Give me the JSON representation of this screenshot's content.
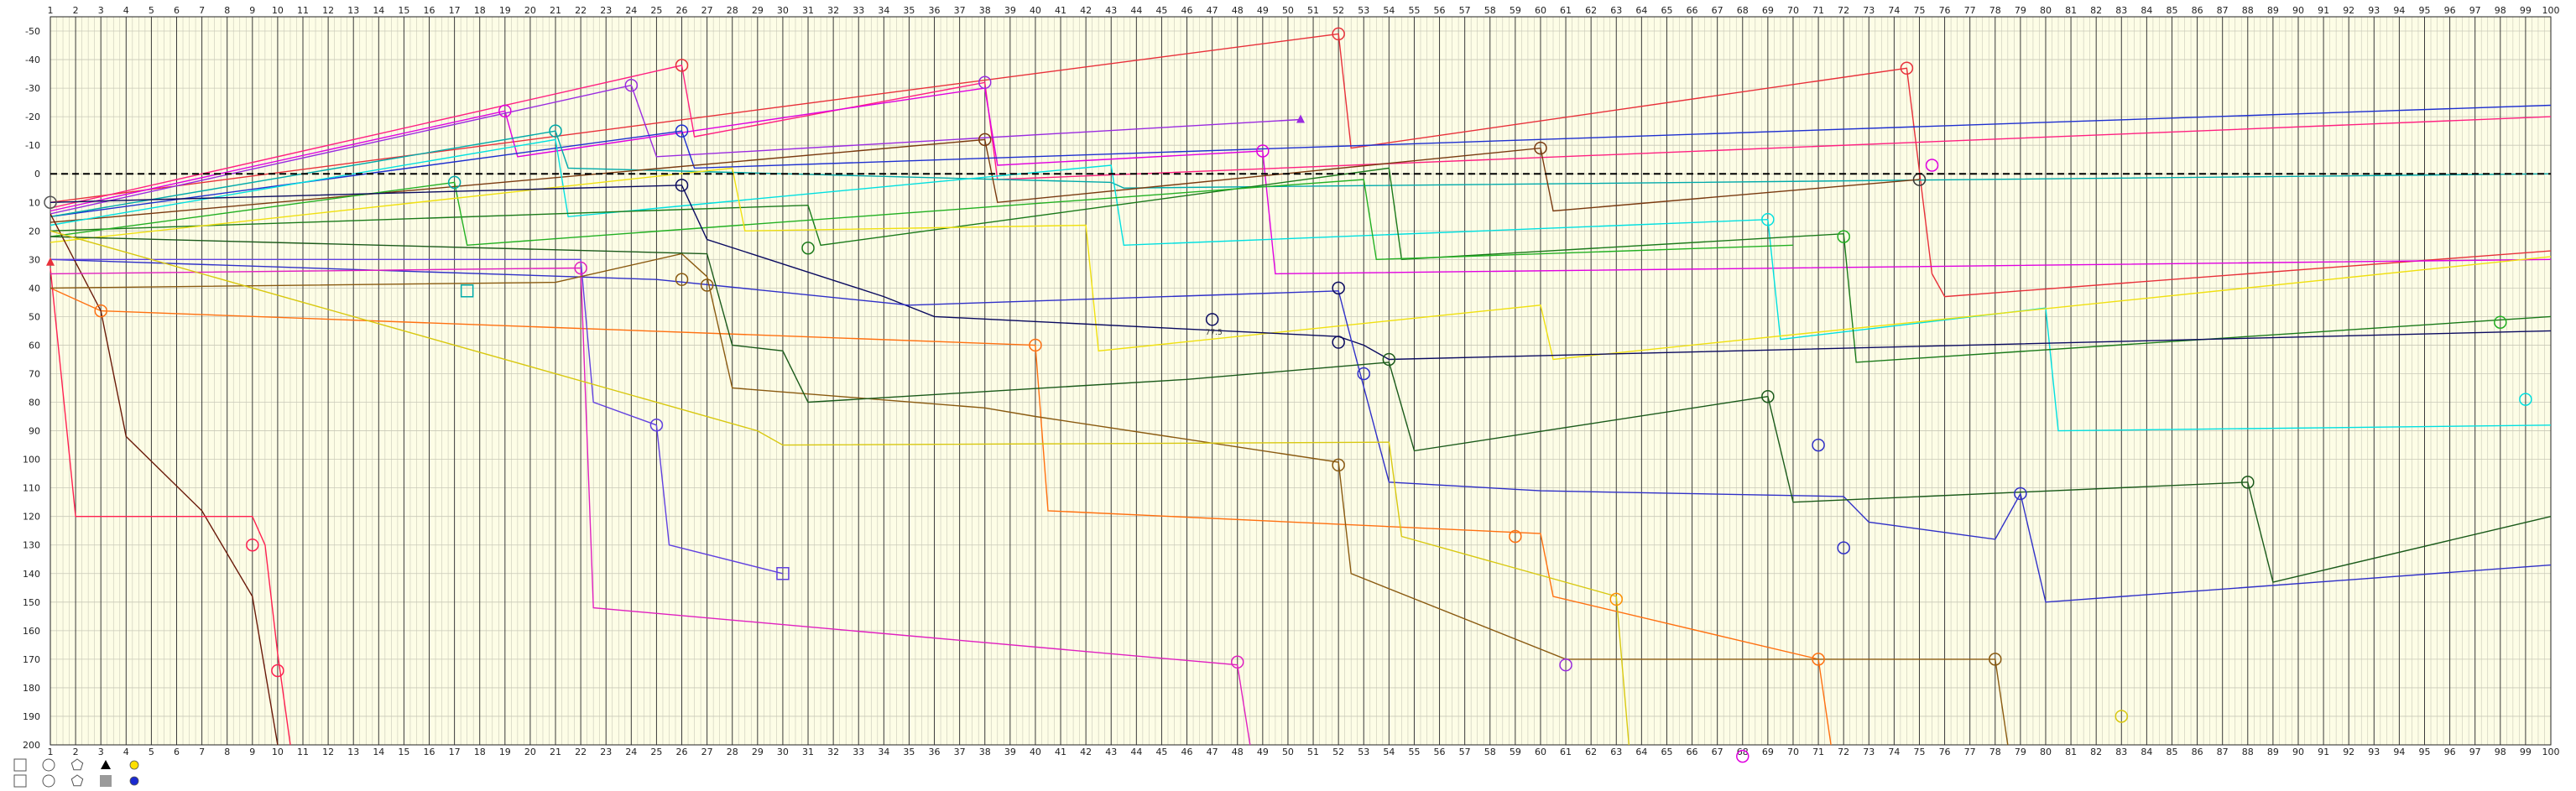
{
  "chart_data": {
    "type": "line",
    "title": "",
    "xlabel": "",
    "ylabel": "",
    "xlim": [
      1,
      100
    ],
    "ylim": [
      200,
      -55
    ],
    "x_ticks": [
      1,
      2,
      3,
      4,
      5,
      6,
      7,
      8,
      9,
      10,
      11,
      12,
      13,
      14,
      15,
      16,
      17,
      18,
      19,
      20,
      21,
      22,
      23,
      24,
      25,
      26,
      27,
      28,
      29,
      30,
      31,
      32,
      33,
      34,
      35,
      36,
      37,
      38,
      39,
      40,
      41,
      42,
      43,
      44,
      45,
      46,
      47,
      48,
      49,
      50,
      51,
      52,
      53,
      54,
      55,
      56,
      57,
      58,
      59,
      60,
      61,
      62,
      63,
      64,
      65,
      66,
      67,
      68,
      69,
      70,
      71,
      72,
      73,
      74,
      75,
      76,
      77,
      78,
      79,
      80,
      81,
      82,
      83,
      84,
      85,
      86,
      87,
      88,
      89,
      90,
      91,
      92,
      93,
      94,
      95,
      96,
      97,
      98,
      99,
      100
    ],
    "y_ticks": [
      -50,
      -40,
      -30,
      -20,
      -10,
      0,
      10,
      20,
      30,
      40,
      50,
      60,
      70,
      80,
      90,
      100,
      110,
      120,
      130,
      140,
      150,
      160,
      170,
      180,
      190,
      200
    ],
    "reference_line": 0,
    "grid": true,
    "colors": {
      "background": "#fdfde6",
      "major_grid": "#3a3a3a",
      "minor_grid": "#c9c9b8"
    },
    "annotation": "77.5",
    "series": [
      {
        "color": "#e8303a",
        "points": [
          [
            1,
            10
          ],
          [
            52,
            -49
          ],
          [
            52.5,
            -9
          ],
          [
            74.5,
            -37
          ],
          [
            75.5,
            35
          ],
          [
            76,
            43
          ],
          [
            100,
            27
          ]
        ]
      },
      {
        "color": "#ff2080",
        "points": [
          [
            1,
            12
          ],
          [
            26,
            -38
          ],
          [
            26.5,
            -13
          ],
          [
            38,
            -32
          ],
          [
            38.5,
            2
          ],
          [
            100,
            -20
          ]
        ]
      },
      {
        "color": "#e000e0",
        "points": [
          [
            1,
            13
          ],
          [
            19,
            -22
          ],
          [
            19.5,
            -6
          ],
          [
            38,
            -30
          ],
          [
            38.5,
            -3
          ],
          [
            49,
            -8
          ],
          [
            49.5,
            35
          ],
          [
            100,
            30
          ]
        ]
      },
      {
        "color": "#9a2be0",
        "points": [
          [
            1,
            14
          ],
          [
            24,
            -31
          ],
          [
            25,
            -6
          ],
          [
            50.5,
            -19
          ]
        ]
      },
      {
        "color": "#1e2fd0",
        "points": [
          [
            1,
            15
          ],
          [
            26,
            -15
          ],
          [
            26.5,
            -2
          ],
          [
            100,
            -24
          ]
        ]
      },
      {
        "color": "#00aaaa",
        "points": [
          [
            1,
            15
          ],
          [
            21,
            -15
          ],
          [
            21.5,
            -2
          ],
          [
            43,
            3
          ],
          [
            43.5,
            5
          ],
          [
            100,
            0
          ]
        ]
      },
      {
        "color": "#7a3a10",
        "points": [
          [
            1,
            17
          ],
          [
            38,
            -12
          ],
          [
            38.5,
            10
          ],
          [
            60,
            -9
          ],
          [
            60.5,
            13
          ],
          [
            75,
            2
          ]
        ]
      },
      {
        "color": "#00e0e0",
        "points": [
          [
            1,
            18
          ],
          [
            21,
            -12
          ],
          [
            21.5,
            15
          ],
          [
            43,
            -3
          ],
          [
            43.5,
            25
          ],
          [
            69,
            16
          ],
          [
            69.5,
            58
          ],
          [
            80,
            47
          ],
          [
            80.5,
            90
          ],
          [
            100,
            88
          ]
        ]
      },
      {
        "color": "#1a7a1a",
        "points": [
          [
            1,
            20
          ],
          [
            31,
            11
          ],
          [
            31.5,
            25
          ],
          [
            54,
            -2
          ],
          [
            54.5,
            30
          ],
          [
            72,
            21
          ],
          [
            72.5,
            66
          ],
          [
            100,
            50
          ]
        ]
      },
      {
        "color": "#22b022",
        "points": [
          [
            1,
            22
          ],
          [
            17,
            3
          ],
          [
            17.5,
            25
          ],
          [
            53,
            2
          ],
          [
            53.5,
            30
          ],
          [
            70,
            25
          ]
        ]
      },
      {
        "color": "#f0e010",
        "points": [
          [
            1,
            24
          ],
          [
            28,
            -2
          ],
          [
            28.5,
            20
          ],
          [
            42,
            18
          ],
          [
            42.5,
            62
          ],
          [
            60,
            46
          ],
          [
            60.5,
            65
          ],
          [
            100,
            29
          ]
        ]
      },
      {
        "color": "#0a0a60",
        "points": [
          [
            1,
            10
          ],
          [
            26,
            4
          ],
          [
            27,
            23
          ],
          [
            34,
            43
          ],
          [
            36,
            50
          ],
          [
            52,
            57
          ],
          [
            53,
            60
          ],
          [
            54,
            65
          ],
          [
            100,
            55
          ]
        ]
      },
      {
        "color": "#3030c8",
        "points": [
          [
            1,
            30
          ],
          [
            25,
            37
          ],
          [
            35,
            46
          ],
          [
            52,
            41
          ],
          [
            52.5,
            58
          ],
          [
            54,
            108
          ],
          [
            60,
            111
          ],
          [
            72,
            113
          ],
          [
            73,
            122
          ],
          [
            78,
            128
          ],
          [
            79,
            112
          ],
          [
            80,
            150
          ],
          [
            100,
            137
          ]
        ]
      },
      {
        "color": "#ff7010",
        "points": [
          [
            1,
            40
          ],
          [
            3,
            48
          ],
          [
            40,
            60
          ],
          [
            40.5,
            118
          ],
          [
            60,
            126
          ],
          [
            60.5,
            148
          ],
          [
            71,
            170
          ],
          [
            71.5,
            200
          ]
        ]
      },
      {
        "color": "#6a1a0a",
        "points": [
          [
            1,
            14
          ],
          [
            3,
            48
          ],
          [
            4,
            92
          ],
          [
            7,
            118
          ],
          [
            9,
            148
          ],
          [
            10,
            200
          ]
        ]
      },
      {
        "color": "#ff2050",
        "points": [
          [
            1,
            33
          ],
          [
            2,
            120
          ],
          [
            9,
            120
          ],
          [
            9.5,
            130
          ],
          [
            10,
            168
          ],
          [
            10.5,
            200
          ]
        ]
      },
      {
        "color": "#e020c0",
        "points": [
          [
            1,
            35
          ],
          [
            22,
            33
          ],
          [
            22.5,
            152
          ],
          [
            48,
            172
          ],
          [
            48.5,
            200
          ]
        ]
      },
      {
        "color": "#6040e0",
        "points": [
          [
            1,
            30
          ],
          [
            22,
            30
          ],
          [
            22.5,
            80
          ],
          [
            25,
            88
          ],
          [
            25.5,
            130
          ],
          [
            30,
            140
          ]
        ]
      },
      {
        "color": "#8a5a10",
        "points": [
          [
            1,
            40
          ],
          [
            21,
            38
          ],
          [
            26,
            28
          ],
          [
            27,
            36
          ],
          [
            28,
            75
          ],
          [
            38,
            82
          ],
          [
            40,
            85
          ],
          [
            52,
            101
          ],
          [
            52.5,
            140
          ],
          [
            61,
            170
          ],
          [
            78,
            170
          ],
          [
            78.5,
            200
          ]
        ]
      },
      {
        "color": "#1a5a1a",
        "points": [
          [
            1,
            22
          ],
          [
            27,
            28
          ],
          [
            28,
            60
          ],
          [
            30,
            62
          ],
          [
            31,
            80
          ],
          [
            46,
            72
          ],
          [
            54,
            66
          ],
          [
            55,
            97
          ],
          [
            69,
            78
          ],
          [
            70,
            115
          ],
          [
            88,
            108
          ],
          [
            89,
            143
          ],
          [
            100,
            120
          ]
        ]
      },
      {
        "color": "#d8c810",
        "points": [
          [
            1,
            20
          ],
          [
            29,
            90
          ],
          [
            30,
            95
          ],
          [
            54,
            94
          ],
          [
            54.5,
            127
          ],
          [
            63,
            148
          ],
          [
            63.5,
            200
          ]
        ]
      }
    ],
    "markers": [
      {
        "x": 1,
        "y": 10,
        "shape": "circle",
        "color": "#555555"
      },
      {
        "x": 3,
        "y": 48,
        "shape": "circle",
        "color": "#ff7010"
      },
      {
        "x": 19,
        "y": -22,
        "shape": "circle",
        "color": "#e000e0"
      },
      {
        "x": 24,
        "y": -31,
        "shape": "circle",
        "color": "#9a2be0"
      },
      {
        "x": 26,
        "y": -38,
        "shape": "circle",
        "color": "#e8303a"
      },
      {
        "x": 38,
        "y": -32,
        "shape": "circle",
        "color": "#9a2be0"
      },
      {
        "x": 52,
        "y": -49,
        "shape": "circle",
        "color": "#e8303a"
      },
      {
        "x": 74.5,
        "y": -37,
        "shape": "circle",
        "color": "#e8303a"
      },
      {
        "x": 75,
        "y": 2,
        "shape": "circle",
        "color": "#333333"
      },
      {
        "x": 75.5,
        "y": -3,
        "shape": "circle",
        "color": "#e000e0"
      },
      {
        "x": 60,
        "y": -9,
        "shape": "circle",
        "color": "#7a3a10"
      },
      {
        "x": 49,
        "y": -8,
        "shape": "circle",
        "color": "#e000e0"
      },
      {
        "x": 26,
        "y": -15,
        "shape": "circle",
        "color": "#1e2fd0"
      },
      {
        "x": 21,
        "y": -15,
        "shape": "circle",
        "color": "#00aaaa"
      },
      {
        "x": 17,
        "y": 3,
        "shape": "circle",
        "color": "#00aaaa"
      },
      {
        "x": 26,
        "y": 4,
        "shape": "circle",
        "color": "#0a0a60"
      },
      {
        "x": 38,
        "y": -12,
        "shape": "circle",
        "color": "#7a3a10"
      },
      {
        "x": 22,
        "y": 33,
        "shape": "circle",
        "color": "#e020c0"
      },
      {
        "x": 31,
        "y": 26,
        "shape": "circle",
        "color": "#1a7a1a"
      },
      {
        "x": 26,
        "y": 37,
        "shape": "circle",
        "color": "#8a5a10"
      },
      {
        "x": 27,
        "y": 39,
        "shape": "circle",
        "color": "#8a5a10"
      },
      {
        "x": 17.5,
        "y": 41,
        "shape": "square",
        "color": "#00aaaa"
      },
      {
        "x": 47,
        "y": 51,
        "shape": "circle",
        "color": "#0a0a60"
      },
      {
        "x": 52,
        "y": 40,
        "shape": "circle",
        "color": "#0a0a60"
      },
      {
        "x": 52,
        "y": 59,
        "shape": "circle",
        "color": "#0a0a60"
      },
      {
        "x": 53,
        "y": 70,
        "shape": "circle",
        "color": "#3030c8"
      },
      {
        "x": 54,
        "y": 65,
        "shape": "circle",
        "color": "#1a5a1a"
      },
      {
        "x": 40,
        "y": 60,
        "shape": "circle",
        "color": "#ff7010"
      },
      {
        "x": 25,
        "y": 88,
        "shape": "circle",
        "color": "#6040e0"
      },
      {
        "x": 30,
        "y": 140,
        "shape": "square",
        "color": "#6040e0"
      },
      {
        "x": 52,
        "y": 102,
        "shape": "circle",
        "color": "#8a5a10"
      },
      {
        "x": 69,
        "y": 78,
        "shape": "circle",
        "color": "#1a5a1a"
      },
      {
        "x": 71,
        "y": 95,
        "shape": "circle",
        "color": "#3030c8"
      },
      {
        "x": 72,
        "y": 131,
        "shape": "circle",
        "color": "#3030c8"
      },
      {
        "x": 79,
        "y": 112,
        "shape": "circle",
        "color": "#3030c8"
      },
      {
        "x": 88,
        "y": 108,
        "shape": "circle",
        "color": "#1a5a1a"
      },
      {
        "x": 69,
        "y": 16,
        "shape": "circle",
        "color": "#00e0e0"
      },
      {
        "x": 72,
        "y": 22,
        "shape": "circle",
        "color": "#22b022"
      },
      {
        "x": 98,
        "y": 52,
        "shape": "circle",
        "color": "#22b022"
      },
      {
        "x": 99,
        "y": 79,
        "shape": "circle",
        "color": "#00e0e0"
      },
      {
        "x": 9,
        "y": 130,
        "shape": "circle",
        "color": "#ff2050"
      },
      {
        "x": 10,
        "y": 174,
        "shape": "circle",
        "color": "#ff2050"
      },
      {
        "x": 48,
        "y": 171,
        "shape": "circle",
        "color": "#e020c0"
      },
      {
        "x": 61,
        "y": 172,
        "shape": "circle",
        "color": "#9a2be0"
      },
      {
        "x": 59,
        "y": 127,
        "shape": "circle",
        "color": "#ff7010"
      },
      {
        "x": 63,
        "y": 149,
        "shape": "circle",
        "color": "#ff9000"
      },
      {
        "x": 71,
        "y": 170,
        "shape": "circle",
        "color": "#ff7010"
      },
      {
        "x": 78,
        "y": 170,
        "shape": "circle",
        "color": "#8a5a10"
      },
      {
        "x": 83,
        "y": 190,
        "shape": "circle",
        "color": "#d8c810"
      },
      {
        "x": 68,
        "y": 204,
        "shape": "circle",
        "color": "#e000e0"
      },
      {
        "x": 1,
        "y": 31,
        "shape": "triangle",
        "color": "#e8303a"
      },
      {
        "x": 50.5,
        "y": -19,
        "shape": "triangle",
        "color": "#9a2be0"
      }
    ]
  },
  "legend": {
    "items": [
      {
        "shape": "square",
        "color": "#555555"
      },
      {
        "shape": "circle",
        "color": "#555555"
      },
      {
        "shape": "pentagon",
        "color": "#555555"
      },
      {
        "shape": "triangle",
        "color": "#000000"
      },
      {
        "shape": "dot",
        "color": "#ffe000"
      },
      {
        "shape": "square",
        "color": "#555555"
      },
      {
        "shape": "circle",
        "color": "#555555"
      },
      {
        "shape": "pentagon",
        "color": "#555555"
      },
      {
        "shape": "filled-square",
        "color": "#9a9a9a"
      },
      {
        "shape": "dot",
        "color": "#1a2ad0"
      }
    ]
  }
}
